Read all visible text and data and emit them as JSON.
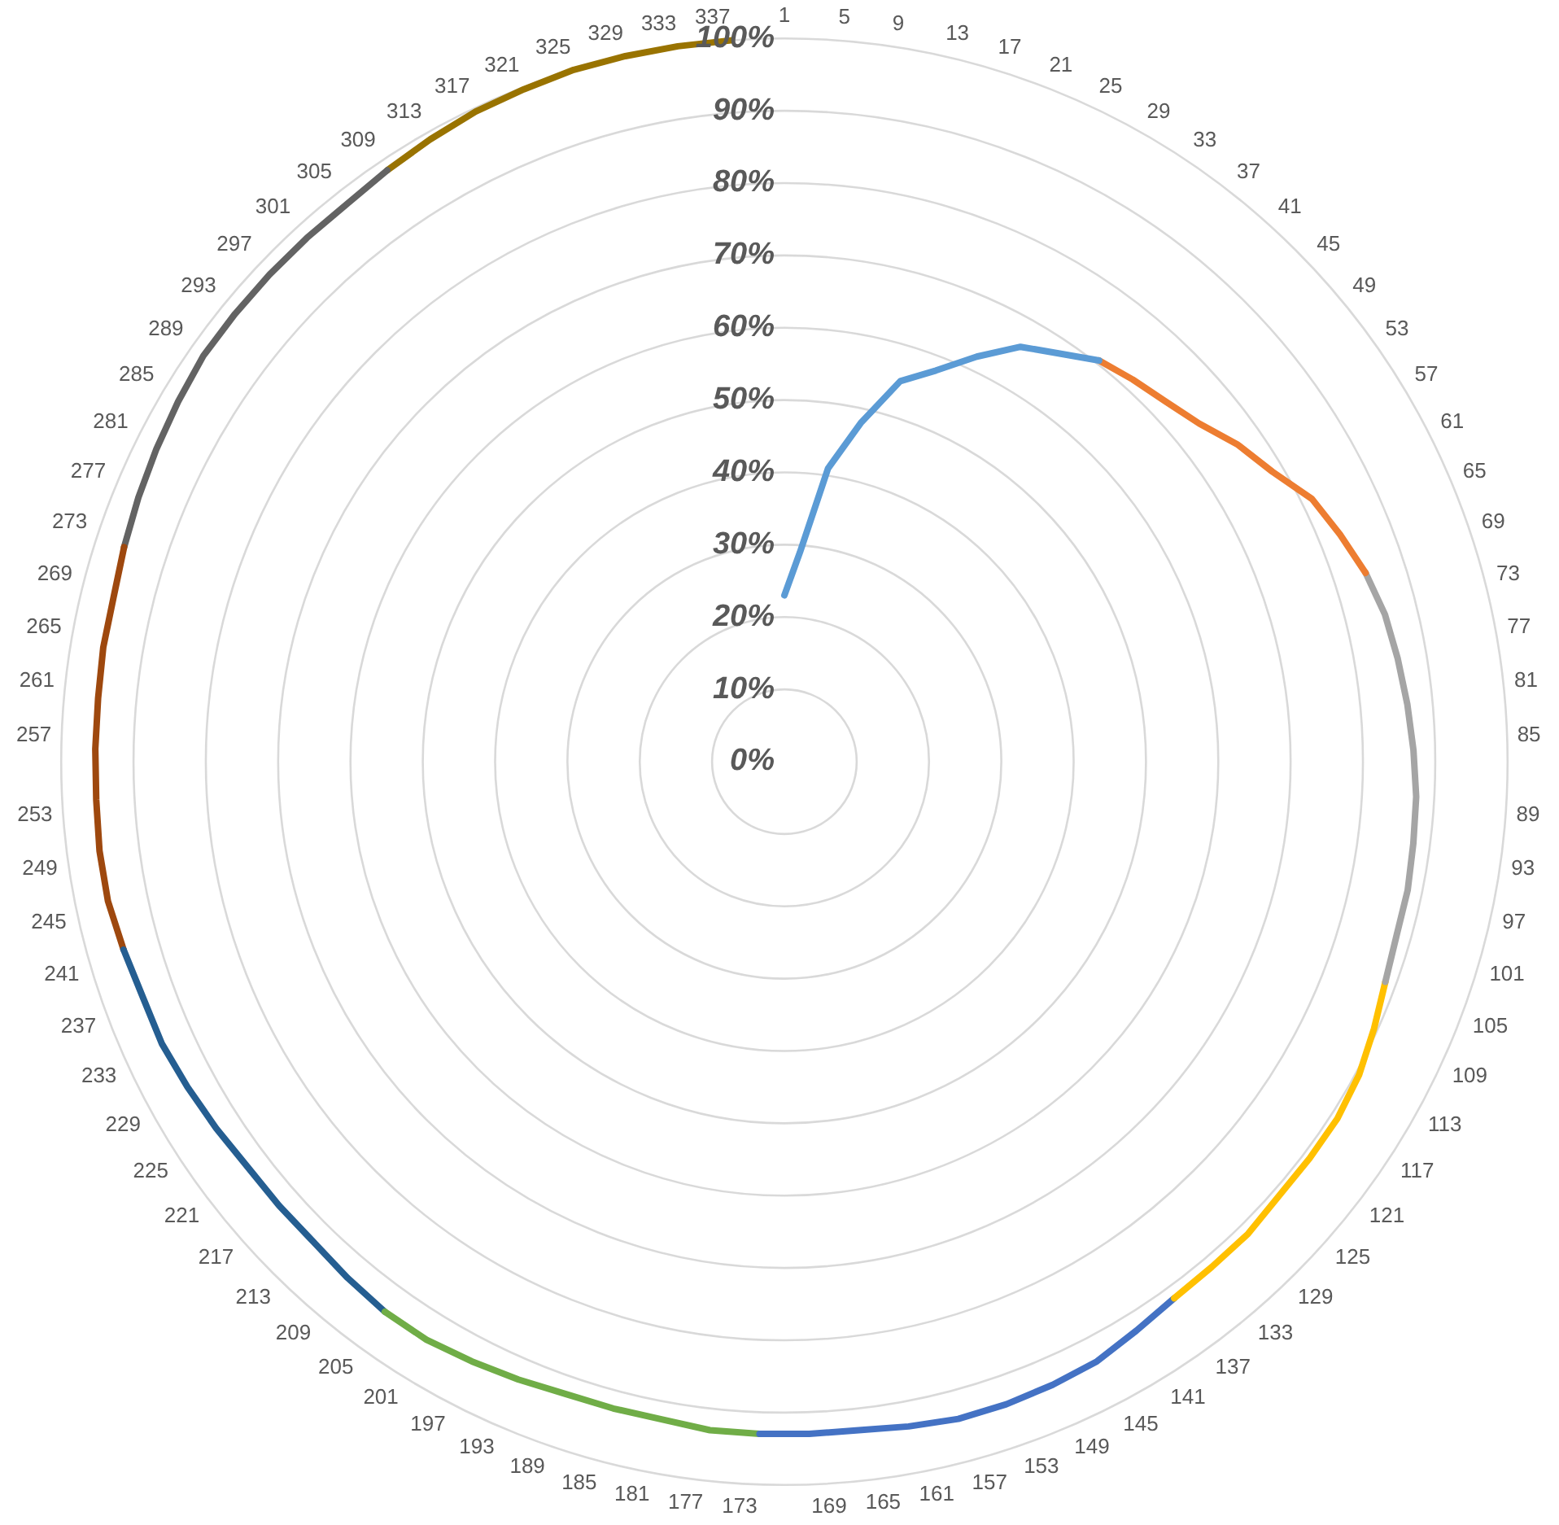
{
  "chart_data": {
    "type": "radar",
    "categories": [
      "1",
      "5",
      "9",
      "13",
      "17",
      "21",
      "25",
      "29",
      "33",
      "37",
      "41",
      "45",
      "49",
      "53",
      "57",
      "61",
      "65",
      "69",
      "73",
      "77",
      "81",
      "85",
      "89",
      "93",
      "97",
      "101",
      "105",
      "109",
      "113",
      "117",
      "121",
      "125",
      "129",
      "133",
      "137",
      "141",
      "145",
      "149",
      "153",
      "157",
      "161",
      "165",
      "169",
      "173",
      "177",
      "181",
      "185",
      "189",
      "193",
      "197",
      "201",
      "205",
      "209",
      "213",
      "217",
      "221",
      "225",
      "229",
      "233",
      "237",
      "241",
      "245",
      "249",
      "253",
      "257",
      "261",
      "265",
      "269",
      "273",
      "277",
      "281",
      "285",
      "289",
      "293",
      "297",
      "301",
      "305",
      "309",
      "313",
      "317",
      "321",
      "325",
      "329",
      "333",
      "337"
    ],
    "ylim": [
      0,
      100
    ],
    "yticks": [
      {
        "value": 0,
        "label": "0%"
      },
      {
        "value": 10,
        "label": "10%"
      },
      {
        "value": 20,
        "label": "20%"
      },
      {
        "value": 30,
        "label": "30%"
      },
      {
        "value": 40,
        "label": "40%"
      },
      {
        "value": 50,
        "label": "50%"
      },
      {
        "value": 60,
        "label": "60%"
      },
      {
        "value": 70,
        "label": "70%"
      },
      {
        "value": 80,
        "label": "80%"
      },
      {
        "value": 90,
        "label": "90%"
      },
      {
        "value": 100,
        "label": "100%"
      }
    ],
    "grid": true,
    "marker": "none",
    "legend": false,
    "series": [
      {
        "color": "#5b9bd5",
        "values": [
          23,
          29,
          41,
          48,
          55,
          58,
          62,
          66,
          68,
          70.5,
          null,
          null,
          null,
          null,
          null,
          null,
          null,
          null,
          null,
          null,
          null,
          null,
          null,
          null,
          null,
          null,
          null,
          null,
          null,
          null,
          null,
          null,
          null,
          null,
          null,
          null,
          null,
          null,
          null,
          null,
          null,
          null,
          null,
          null,
          null,
          null,
          null,
          null,
          null,
          null,
          null,
          null,
          null,
          null,
          null,
          null,
          null,
          null,
          null,
          null,
          null,
          null,
          null,
          null,
          null,
          null,
          null,
          null,
          null,
          null,
          null,
          null,
          null,
          null,
          null,
          null,
          null,
          null,
          null,
          null,
          null,
          null,
          null,
          null,
          null
        ]
      },
      {
        "color": "#ed7d31",
        "values": [
          null,
          null,
          null,
          null,
          null,
          null,
          null,
          null,
          null,
          70.5,
          71.5,
          72.5,
          74,
          76.5,
          78.5,
          81.5,
          83,
          84.5,
          null,
          null,
          null,
          null,
          null,
          null,
          null,
          null,
          null,
          null,
          null,
          null,
          null,
          null,
          null,
          null,
          null,
          null,
          null,
          null,
          null,
          null,
          null,
          null,
          null,
          null,
          null,
          null,
          null,
          null,
          null,
          null,
          null,
          null,
          null,
          null,
          null,
          null,
          null,
          null,
          null,
          null,
          null,
          null,
          null,
          null,
          null,
          null,
          null,
          null,
          null,
          null,
          null,
          null,
          null,
          null,
          null,
          null,
          null,
          null,
          null,
          null,
          null,
          null,
          null,
          null,
          null
        ]
      },
      {
        "color": "#a5a5a5",
        "values": [
          null,
          null,
          null,
          null,
          null,
          null,
          null,
          null,
          null,
          null,
          null,
          null,
          null,
          null,
          null,
          null,
          null,
          84.5,
          85.5,
          86,
          86.5,
          87,
          87.5,
          87.7,
          88,
          88,
          88.5,
          null,
          null,
          null,
          null,
          null,
          null,
          null,
          null,
          null,
          null,
          null,
          null,
          null,
          null,
          null,
          null,
          null,
          null,
          null,
          null,
          null,
          null,
          null,
          null,
          null,
          null,
          null,
          null,
          null,
          null,
          null,
          null,
          null,
          null,
          null,
          null,
          null,
          null,
          null,
          null,
          null,
          null,
          null,
          null,
          null,
          null,
          null,
          null,
          null,
          null,
          null,
          null,
          null,
          null,
          null,
          null,
          null,
          null
        ]
      },
      {
        "color": "#ffc000",
        "values": [
          null,
          null,
          null,
          null,
          null,
          null,
          null,
          null,
          null,
          null,
          null,
          null,
          null,
          null,
          null,
          null,
          null,
          null,
          null,
          null,
          null,
          null,
          null,
          null,
          null,
          null,
          88.5,
          89.5,
          90.5,
          91,
          91,
          91,
          91.5,
          91.5,
          91.7,
          null,
          null,
          null,
          null,
          null,
          null,
          null,
          null,
          null,
          null,
          null,
          null,
          null,
          null,
          null,
          null,
          null,
          null,
          null,
          null,
          null,
          null,
          null,
          null,
          null,
          null,
          null,
          null,
          null,
          null,
          null,
          null,
          null,
          null,
          null,
          null,
          null,
          null,
          null,
          null,
          null,
          null,
          null,
          null,
          null,
          null,
          null,
          null,
          null,
          null
        ]
      },
      {
        "color": "#4472c4",
        "values": [
          null,
          null,
          null,
          null,
          null,
          null,
          null,
          null,
          null,
          null,
          null,
          null,
          null,
          null,
          null,
          null,
          null,
          null,
          null,
          null,
          null,
          null,
          null,
          null,
          null,
          null,
          null,
          null,
          null,
          null,
          null,
          null,
          null,
          null,
          91.7,
          92.5,
          93.5,
          93.8,
          94,
          94,
          93.5,
          93,
          93,
          93,
          null,
          null,
          null,
          null,
          null,
          null,
          null,
          null,
          null,
          null,
          null,
          null,
          null,
          null,
          null,
          null,
          null,
          null,
          null,
          null,
          null,
          null,
          null,
          null,
          null,
          null,
          null,
          null,
          null,
          null,
          null,
          null,
          null,
          null,
          null,
          null,
          null,
          null,
          null,
          null,
          null
        ]
      },
      {
        "color": "#70ad47",
        "values": [
          null,
          null,
          null,
          null,
          null,
          null,
          null,
          null,
          null,
          null,
          null,
          null,
          null,
          null,
          null,
          null,
          null,
          null,
          null,
          null,
          null,
          null,
          null,
          null,
          null,
          null,
          null,
          null,
          null,
          null,
          null,
          null,
          null,
          null,
          null,
          null,
          null,
          null,
          null,
          null,
          null,
          null,
          null,
          93,
          93,
          92.5,
          92.5,
          92.5,
          93,
          93.5,
          94,
          94,
          null,
          null,
          null,
          null,
          null,
          null,
          null,
          null,
          null,
          null,
          null,
          null,
          null,
          null,
          null,
          null,
          null,
          null,
          null,
          null,
          null,
          null,
          null,
          null,
          null,
          null,
          null,
          null,
          null,
          null,
          null,
          null,
          null
        ]
      },
      {
        "color": "#255e91",
        "values": [
          null,
          null,
          null,
          null,
          null,
          null,
          null,
          null,
          null,
          null,
          null,
          null,
          null,
          null,
          null,
          null,
          null,
          null,
          null,
          null,
          null,
          null,
          null,
          null,
          null,
          null,
          null,
          null,
          null,
          null,
          null,
          null,
          null,
          null,
          null,
          null,
          null,
          null,
          null,
          null,
          null,
          null,
          null,
          null,
          null,
          null,
          null,
          null,
          null,
          null,
          null,
          94,
          93.5,
          93,
          93,
          93,
          93.5,
          94,
          94.5,
          94.5,
          95,
          null,
          null,
          null,
          null,
          null,
          null,
          null,
          null,
          null,
          null,
          null,
          null,
          null,
          null,
          null,
          null,
          null,
          null,
          null,
          null,
          null,
          null,
          null,
          null
        ]
      },
      {
        "color": "#9e480e",
        "values": [
          null,
          null,
          null,
          null,
          null,
          null,
          null,
          null,
          null,
          null,
          null,
          null,
          null,
          null,
          null,
          null,
          null,
          null,
          null,
          null,
          null,
          null,
          null,
          null,
          null,
          null,
          null,
          null,
          null,
          null,
          null,
          null,
          null,
          null,
          null,
          null,
          null,
          null,
          null,
          null,
          null,
          null,
          null,
          null,
          null,
          null,
          null,
          null,
          null,
          null,
          null,
          null,
          null,
          null,
          null,
          null,
          null,
          null,
          null,
          null,
          95,
          95.5,
          95.5,
          95.3,
          95.3,
          95.3,
          95.5,
          95.5,
          96,
          null,
          null,
          null,
          null,
          null,
          null,
          null,
          null,
          null,
          null,
          null,
          null,
          null,
          null,
          null,
          null
        ]
      },
      {
        "color": "#636363",
        "values": [
          null,
          null,
          null,
          null,
          null,
          null,
          null,
          null,
          null,
          null,
          null,
          null,
          null,
          null,
          null,
          null,
          null,
          null,
          null,
          null,
          null,
          null,
          null,
          null,
          null,
          null,
          null,
          null,
          null,
          null,
          null,
          null,
          null,
          null,
          null,
          null,
          null,
          null,
          null,
          null,
          null,
          null,
          null,
          null,
          null,
          null,
          null,
          null,
          null,
          null,
          null,
          null,
          null,
          null,
          null,
          null,
          null,
          null,
          null,
          null,
          null,
          null,
          null,
          null,
          null,
          null,
          null,
          null,
          96,
          96.5,
          97,
          97.5,
          98,
          98,
          98,
          98,
          98,
          98.5,
          null,
          null,
          null,
          null,
          null,
          null,
          null
        ]
      },
      {
        "color": "#997300",
        "values": [
          null,
          null,
          null,
          null,
          null,
          null,
          null,
          null,
          null,
          null,
          null,
          null,
          null,
          null,
          null,
          null,
          null,
          null,
          null,
          null,
          null,
          null,
          null,
          null,
          null,
          null,
          null,
          null,
          null,
          null,
          null,
          null,
          null,
          null,
          null,
          null,
          null,
          null,
          null,
          null,
          null,
          null,
          null,
          null,
          null,
          null,
          null,
          null,
          null,
          null,
          null,
          null,
          null,
          null,
          null,
          null,
          null,
          null,
          null,
          null,
          null,
          null,
          null,
          null,
          null,
          null,
          null,
          null,
          null,
          null,
          null,
          null,
          null,
          null,
          null,
          null,
          null,
          98.5,
          99,
          99.5,
          99.7,
          100,
          100,
          100,
          100
        ]
      }
    ]
  }
}
